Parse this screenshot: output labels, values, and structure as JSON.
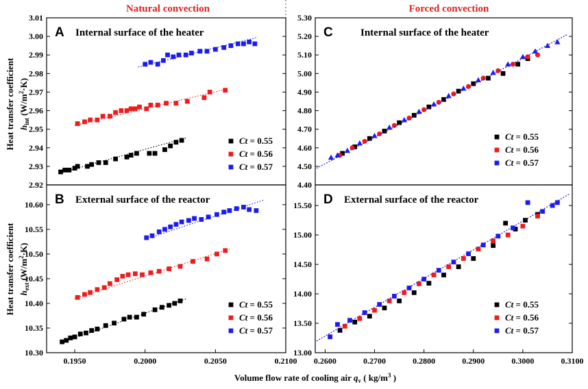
{
  "figure": {
    "column_titles": [
      "Natural convection",
      "Forced convection"
    ],
    "xlabel": {
      "main": "Volume flow rate of cooling air ",
      "q": "q",
      "sub": "v",
      "unit": " ( kg/m",
      "sup": "3",
      "close": " )"
    },
    "ylabel_top": {
      "line1": "Heat transfer coefficient",
      "h": "h",
      "sub": "int",
      "unit": "  (W/m",
      "sup": "2",
      "unit2": "·K)"
    },
    "ylabel_bottom": {
      "line1": "Heat transfer coefficient",
      "h": "h",
      "sub": "ext",
      "unit": "  (W/m",
      "sup": "2",
      "unit2": "·K)"
    },
    "legend_labels": [
      "Ct = 0.55",
      "Ct = 0.56",
      "Ct = 0.57"
    ],
    "legend_ct": "Ct",
    "legend_values": [
      "= 0.55",
      "= 0.56",
      "= 0.57"
    ]
  },
  "colors": {
    "s055": "#000000",
    "s056": "#ee1c1c",
    "s057": "#1c1cf0",
    "title_red": "#e0211d"
  },
  "chart_data": [
    {
      "id": "A",
      "type": "scatter",
      "letter": "A",
      "title": "Internal surface of the heater",
      "xlim": [
        0.193,
        0.21
      ],
      "ylim": [
        2.92,
        3.01
      ],
      "yticks": [
        "2.92",
        "2.93",
        "2.94",
        "2.95",
        "2.96",
        "2.97",
        "2.98",
        "2.99",
        "3.00",
        "3.01"
      ],
      "yticks_values": [
        2.92,
        2.93,
        2.94,
        2.95,
        2.96,
        2.97,
        2.98,
        2.99,
        3.0,
        3.01
      ],
      "xticks": [],
      "xticks_values": [],
      "series": [
        {
          "name": "Ct = 0.55",
          "trend": [
            [
              0.194,
              2.9265
            ],
            [
              0.203,
              2.9455
            ]
          ],
          "x": [
            0.194,
            0.1943,
            0.1946,
            0.195,
            0.1952,
            0.1959,
            0.1962,
            0.1967,
            0.1972,
            0.1979,
            0.1987,
            0.199,
            0.1994,
            0.2003,
            0.2007,
            0.2014,
            0.2018,
            0.2022,
            0.2026
          ],
          "y": [
            2.927,
            2.928,
            2.928,
            2.929,
            2.93,
            2.93,
            2.931,
            2.932,
            2.932,
            2.934,
            2.935,
            2.936,
            2.937,
            2.937,
            2.937,
            2.939,
            2.941,
            2.943,
            2.944
          ]
        },
        {
          "name": "Ct = 0.56",
          "trend": [
            [
              0.195,
              2.952
            ],
            [
              0.206,
              2.972
            ]
          ],
          "x": [
            0.1952,
            0.1957,
            0.1961,
            0.1966,
            0.197,
            0.1975,
            0.1979,
            0.1983,
            0.1987,
            0.199,
            0.1993,
            0.1996,
            0.2001,
            0.2004,
            0.2009,
            0.2015,
            0.2022,
            0.203,
            0.2042,
            0.2046,
            0.2057
          ],
          "y": [
            2.953,
            2.954,
            2.955,
            2.955,
            2.957,
            2.957,
            2.959,
            2.96,
            2.96,
            2.961,
            2.961,
            2.962,
            2.961,
            2.963,
            2.963,
            2.964,
            2.964,
            2.965,
            2.967,
            2.97,
            2.971
          ]
        },
        {
          "name": "Ct = 0.57",
          "trend": [
            [
              0.1995,
              2.9835
            ],
            [
              0.208,
              2.9995
            ]
          ],
          "x": [
            0.2,
            0.2004,
            0.2009,
            0.2013,
            0.2016,
            0.202,
            0.2024,
            0.2029,
            0.2033,
            0.2039,
            0.2044,
            0.205,
            0.2056,
            0.2061,
            0.2066,
            0.207,
            0.2074,
            0.2078
          ],
          "y": [
            2.985,
            2.986,
            2.985,
            2.987,
            2.99,
            2.989,
            2.99,
            2.99,
            2.991,
            2.992,
            2.992,
            2.993,
            2.994,
            2.995,
            2.996,
            2.996,
            2.997,
            2.996
          ]
        }
      ]
    },
    {
      "id": "B",
      "type": "scatter",
      "letter": "B",
      "title": "External surface of the reactor",
      "xlim": [
        0.193,
        0.21
      ],
      "ylim": [
        10.3,
        10.64
      ],
      "yticks": [
        "10.30",
        "10.35",
        "10.40",
        "10.45",
        "10.50",
        "10.55",
        "10.60"
      ],
      "yticks_values": [
        10.3,
        10.35,
        10.4,
        10.45,
        10.5,
        10.55,
        10.6
      ],
      "xticks": [
        "0.1950",
        "0.2000",
        "0.2050",
        "0.2100"
      ],
      "xticks_values": [
        0.195,
        0.2,
        0.205,
        0.21
      ],
      "series": [
        {
          "name": "Ct = 0.55",
          "trend": [
            [
              0.194,
              10.32
            ],
            [
              0.203,
              10.41
            ]
          ],
          "x": [
            0.1941,
            0.1944,
            0.1947,
            0.195,
            0.1954,
            0.1958,
            0.1962,
            0.1966,
            0.1972,
            0.1978,
            0.1985,
            0.1989,
            0.1994,
            0.1999,
            0.2007,
            0.2012,
            0.2017,
            0.2021,
            0.2025
          ],
          "y": [
            10.322,
            10.325,
            10.33,
            10.332,
            10.338,
            10.34,
            10.345,
            10.348,
            10.355,
            10.36,
            10.368,
            10.372,
            10.372,
            10.378,
            10.387,
            10.392,
            10.396,
            10.4,
            10.405
          ]
        },
        {
          "name": "Ct = 0.56",
          "trend": [
            [
              0.195,
              10.41
            ],
            [
              0.206,
              10.51
            ]
          ],
          "x": [
            0.1952,
            0.1957,
            0.1961,
            0.1966,
            0.1971,
            0.1975,
            0.198,
            0.1984,
            0.1988,
            0.1993,
            0.1998,
            0.2004,
            0.201,
            0.2017,
            0.2025,
            0.2034,
            0.2044,
            0.2051,
            0.2057
          ],
          "y": [
            10.412,
            10.418,
            10.422,
            10.428,
            10.432,
            10.44,
            10.448,
            10.455,
            10.458,
            10.46,
            10.458,
            10.462,
            10.465,
            10.47,
            10.475,
            10.485,
            10.49,
            10.5,
            10.507
          ]
        },
        {
          "name": "Ct = 0.57",
          "trend": [
            [
              0.2,
              10.53
            ],
            [
              0.2085,
              10.61
            ]
          ],
          "x": [
            0.2001,
            0.2005,
            0.201,
            0.2014,
            0.2018,
            0.2022,
            0.2026,
            0.2031,
            0.2035,
            0.204,
            0.2045,
            0.2051,
            0.2056,
            0.206,
            0.2065,
            0.207,
            0.2074,
            0.2079
          ],
          "y": [
            10.533,
            10.537,
            10.545,
            10.55,
            10.555,
            10.56,
            10.565,
            10.568,
            10.572,
            10.57,
            10.575,
            10.58,
            10.585,
            10.588,
            10.592,
            10.595,
            10.59,
            10.588
          ]
        }
      ]
    },
    {
      "id": "C",
      "type": "scatter",
      "letter": "C",
      "title": "Internal surface of the heater",
      "xlim": [
        0.258,
        0.31
      ],
      "ylim": [
        4.4,
        5.3
      ],
      "yticks": [
        "4.40",
        "4.50",
        "4.60",
        "4.70",
        "4.80",
        "4.90",
        "5.00",
        "5.10",
        "5.20",
        "5.30"
      ],
      "yticks_values": [
        4.4,
        4.5,
        4.6,
        4.7,
        4.8,
        4.9,
        5.0,
        5.1,
        5.2,
        5.3
      ],
      "xticks": [],
      "xticks_values": [],
      "series": [
        {
          "name": "Ct = 0.55",
          "marker": "square",
          "trend": [
            [
              0.2583,
              4.49
            ],
            [
              0.309,
              5.21
            ]
          ],
          "x": [
            0.2635,
            0.266,
            0.269,
            0.272,
            0.275,
            0.278,
            0.281,
            0.284,
            0.287,
            0.29,
            0.293,
            0.296,
            0.299,
            0.301
          ],
          "y": [
            4.57,
            4.605,
            4.65,
            4.69,
            4.735,
            4.775,
            4.82,
            4.86,
            4.905,
            4.945,
            4.975,
            5.0,
            5.05,
            5.08
          ]
        },
        {
          "name": "Ct = 0.56",
          "marker": "circle",
          "trend": [
            [
              0.2583,
              4.49
            ],
            [
              0.309,
              5.21
            ]
          ],
          "x": [
            0.263,
            0.2655,
            0.268,
            0.271,
            0.274,
            0.277,
            0.28,
            0.283,
            0.286,
            0.289,
            0.292,
            0.295,
            0.298,
            0.301,
            0.303
          ],
          "y": [
            4.56,
            4.6,
            4.635,
            4.675,
            4.72,
            4.76,
            4.805,
            4.845,
            4.89,
            4.93,
            4.975,
            5.015,
            5.05,
            5.09,
            5.1
          ]
        },
        {
          "name": "Ct = 0.57",
          "marker": "triangle",
          "trend": [
            [
              0.2583,
              4.49
            ],
            [
              0.309,
              5.21
            ]
          ],
          "x": [
            0.2612,
            0.2625,
            0.2645,
            0.267,
            0.27,
            0.273,
            0.276,
            0.279,
            0.282,
            0.285,
            0.288,
            0.291,
            0.294,
            0.297,
            0.3,
            0.3025,
            0.305,
            0.307
          ],
          "y": [
            4.548,
            4.56,
            4.585,
            4.625,
            4.665,
            4.71,
            4.75,
            4.795,
            4.835,
            4.88,
            4.92,
            4.965,
            5.005,
            5.05,
            5.09,
            5.12,
            5.15,
            5.17
          ]
        }
      ]
    },
    {
      "id": "D",
      "type": "scatter",
      "letter": "D",
      "title": "External surface of the reactor",
      "xlim": [
        0.258,
        0.31
      ],
      "ylim": [
        13.0,
        15.85
      ],
      "yticks": [
        "13.00",
        "13.50",
        "14.00",
        "14.50",
        "15.00",
        "15.50"
      ],
      "yticks_values": [
        13.0,
        13.5,
        14.0,
        14.5,
        15.0,
        15.5
      ],
      "xticks": [
        "0.2600",
        "0.2700",
        "0.2800",
        "0.2900",
        "0.3000",
        "0.3100"
      ],
      "xticks_values": [
        0.26,
        0.27,
        0.28,
        0.29,
        0.3,
        0.31
      ],
      "series": [
        {
          "name": "Ct = 0.55",
          "marker": "square",
          "trend": [
            [
              0.2583,
              13.2
            ],
            [
              0.3095,
              15.7
            ]
          ],
          "x": [
            0.263,
            0.266,
            0.269,
            0.272,
            0.275,
            0.278,
            0.281,
            0.284,
            0.287,
            0.29,
            0.294,
            0.2965,
            0.2985,
            0.3005,
            0.303
          ],
          "y": [
            13.38,
            13.52,
            13.62,
            13.76,
            13.88,
            14.02,
            14.18,
            14.32,
            14.46,
            14.6,
            14.82,
            15.2,
            15.1,
            15.25,
            15.35
          ]
        },
        {
          "name": "Ct = 0.56",
          "marker": "square",
          "trend": [
            [
              0.2583,
              13.2
            ],
            [
              0.3095,
              15.7
            ]
          ],
          "x": [
            0.264,
            0.267,
            0.27,
            0.273,
            0.276,
            0.279,
            0.282,
            0.285,
            0.288,
            0.291,
            0.294,
            0.297,
            0.3,
            0.303
          ],
          "y": [
            13.45,
            13.58,
            13.72,
            13.88,
            14.02,
            14.17,
            14.32,
            14.46,
            14.6,
            14.76,
            14.9,
            15.0,
            15.15,
            15.32
          ]
        },
        {
          "name": "Ct = 0.57",
          "marker": "square",
          "trend": [
            [
              0.2583,
              13.2
            ],
            [
              0.3095,
              15.7
            ]
          ],
          "x": [
            0.261,
            0.2625,
            0.265,
            0.268,
            0.271,
            0.274,
            0.277,
            0.28,
            0.283,
            0.286,
            0.289,
            0.292,
            0.295,
            0.298,
            0.301,
            0.304,
            0.306,
            0.307
          ],
          "y": [
            13.27,
            13.48,
            13.55,
            13.68,
            13.82,
            13.96,
            14.1,
            14.25,
            14.4,
            14.54,
            14.68,
            14.83,
            14.98,
            15.12,
            15.55,
            15.4,
            15.5,
            15.55
          ]
        }
      ]
    }
  ]
}
